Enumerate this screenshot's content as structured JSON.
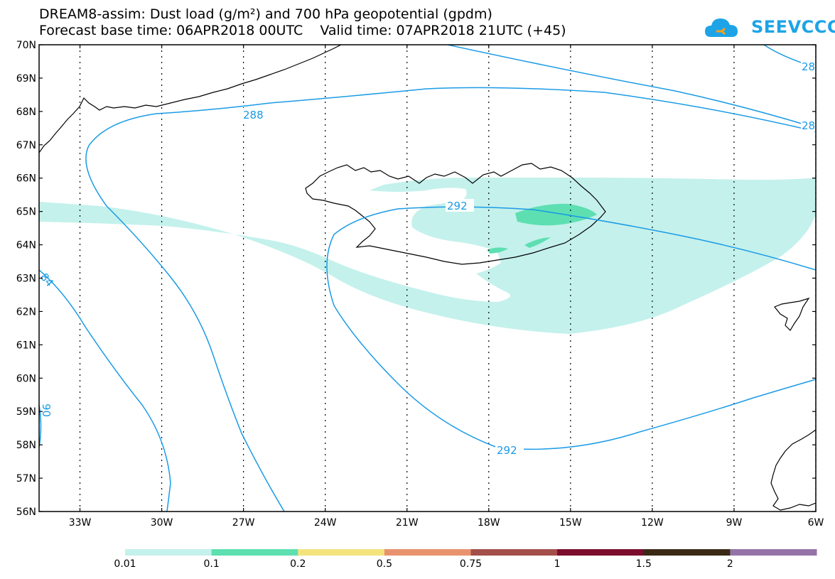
{
  "header": {
    "title_line1": "DREAM8-assim: Dust load (g/m²) and 700 hPa geopotential (gpdm)",
    "title_line2": "Forecast base time: 06APR2018 00UTC    Valid time: 07APR2018 21UTC (+45)"
  },
  "logo": {
    "text": "SEEVCCC",
    "icon": "cloud-icon",
    "color": "#1ea4e6"
  },
  "map": {
    "lat_labels": [
      "70N",
      "69N",
      "68N",
      "67N",
      "66N",
      "65N",
      "64N",
      "63N",
      "62N",
      "61N",
      "60N",
      "59N",
      "58N",
      "57N",
      "56N"
    ],
    "lon_labels": [
      "33W",
      "30W",
      "27W",
      "24W",
      "21W",
      "18W",
      "15W",
      "12W",
      "9W",
      "6W"
    ],
    "contour_labels": {
      "c288": "288",
      "c292a": "292",
      "c292b": "292",
      "c28a": "28",
      "c28b": "28",
      "c84": "84",
      "c90": "90"
    },
    "contour_color": "#1a9be6",
    "coast_color": "#000000"
  },
  "colorbar": {
    "labels": [
      "0.01",
      "0.1",
      "0.2",
      "0.5",
      "0.75",
      "1",
      "1.5",
      "2"
    ],
    "colors": [
      "#c4f1ec",
      "#5ddfb2",
      "#f4e37c",
      "#e8936e",
      "#a44f4a",
      "#7b0d2f",
      "#3a2915",
      "#9473a8"
    ]
  }
}
